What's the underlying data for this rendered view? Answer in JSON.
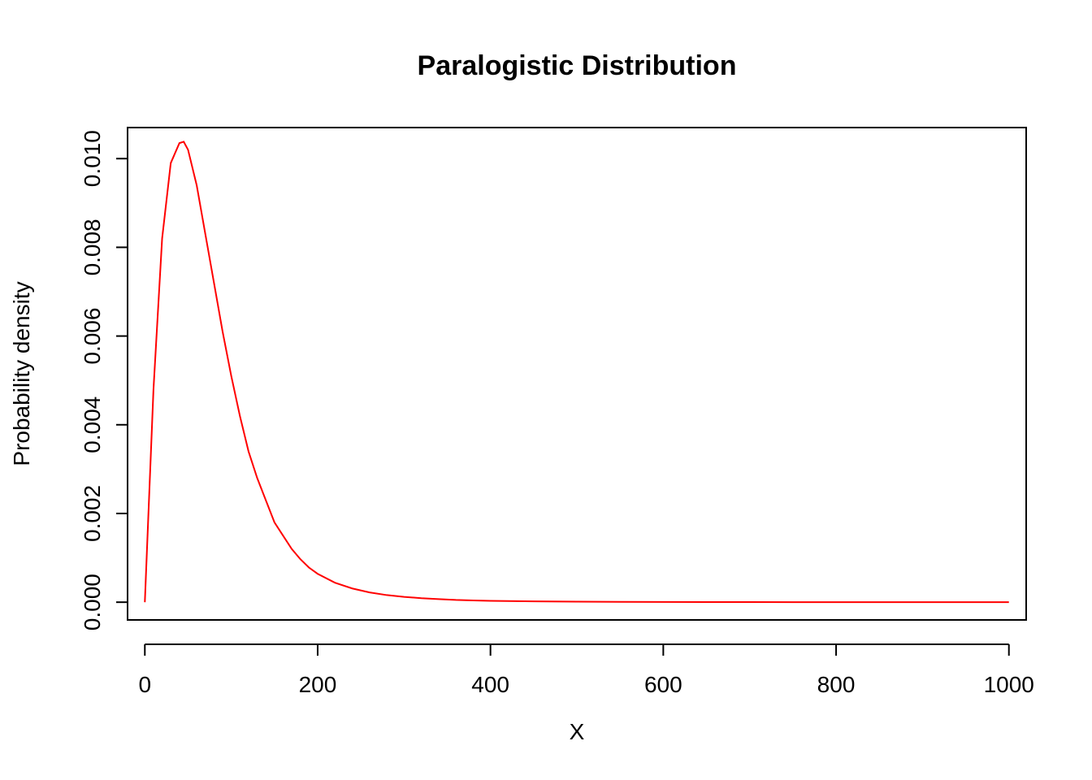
{
  "chart_data": {
    "type": "line",
    "title": "Paralogistic Distribution",
    "xlabel": "X",
    "ylabel": "Probability density",
    "xlim": [
      -20,
      1020
    ],
    "ylim": [
      -0.0004,
      0.0107
    ],
    "x_ticks": [
      "0",
      "200",
      "400",
      "600",
      "800",
      "1000"
    ],
    "y_ticks": [
      "0.000",
      "0.002",
      "0.004",
      "0.006",
      "0.008",
      "0.010"
    ],
    "grid": false,
    "line_color": "#FF0000",
    "series": [
      {
        "x": [
          0,
          10,
          20,
          30,
          40,
          45,
          50,
          60,
          70,
          80,
          90,
          100,
          110,
          120,
          130,
          140,
          150,
          160,
          170,
          180,
          190,
          200,
          220,
          240,
          260,
          280,
          300,
          320,
          340,
          360,
          380,
          400,
          450,
          500,
          550,
          600,
          650,
          700,
          750,
          800,
          850,
          900,
          950,
          1000
        ],
        "values": [
          0.0,
          0.0048,
          0.0082,
          0.0099,
          0.01035,
          0.01038,
          0.0102,
          0.0094,
          0.0083,
          0.0072,
          0.0061,
          0.0051,
          0.0042,
          0.0034,
          0.0028,
          0.0023,
          0.0018,
          0.0015,
          0.0012,
          0.00097,
          0.00078,
          0.00064,
          0.00044,
          0.00031,
          0.00022,
          0.00016,
          0.00012,
          9e-05,
          7e-05,
          5e-05,
          4e-05,
          3e-05,
          1.8e-05,
          1.1e-05,
          7e-06,
          5e-06,
          3e-06,
          2e-06,
          1.5e-06,
          1e-06,
          8e-07,
          6e-07,
          5e-07,
          4e-07
        ]
      }
    ]
  }
}
